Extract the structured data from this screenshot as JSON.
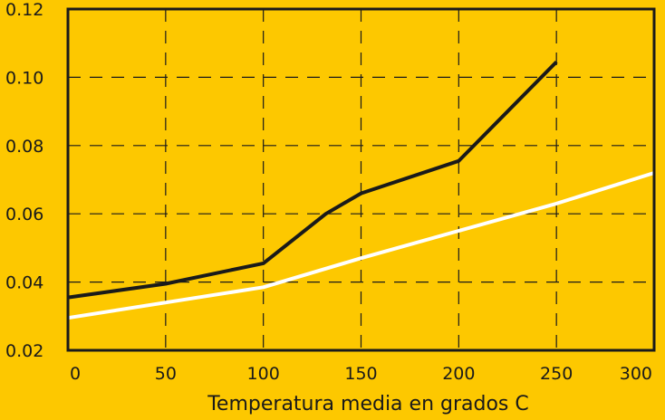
{
  "chart_data": {
    "type": "line",
    "title": "",
    "xlabel": "Temperatura media en grados C",
    "ylabel": "",
    "xlim": [
      0,
      300
    ],
    "ylim": [
      0.02,
      0.12
    ],
    "x_ticks": [
      0,
      50,
      100,
      150,
      200,
      250,
      300
    ],
    "x_tick_labels": [
      "0",
      "50",
      "100",
      "150",
      "200",
      "250",
      "300"
    ],
    "y_ticks": [
      0.02,
      0.04,
      0.06,
      0.08,
      0.1,
      0.12
    ],
    "y_tick_labels": [
      "0.02",
      "0.04",
      "0.06",
      "0.08",
      "0.10",
      "0.12"
    ],
    "grid": true,
    "grid_style": "dashed",
    "legend": "none",
    "colors": {
      "background": "#FDC800",
      "axes": "#1a1a1a",
      "grid": "#1a1a1a",
      "series_dark": "#1a1a1a",
      "series_light": "#FFFFFF"
    },
    "series": [
      {
        "color": "#1a1a1a",
        "x": [
          0,
          50,
          100,
          132,
          150,
          200,
          250
        ],
        "y": [
          0.0355,
          0.0395,
          0.0455,
          0.06,
          0.066,
          0.0755,
          0.1045
        ]
      },
      {
        "color": "#FFFFFF",
        "x": [
          0,
          100,
          150,
          200,
          250,
          300
        ],
        "y": [
          0.0295,
          0.0385,
          0.047,
          0.055,
          0.063,
          0.072
        ]
      }
    ]
  }
}
